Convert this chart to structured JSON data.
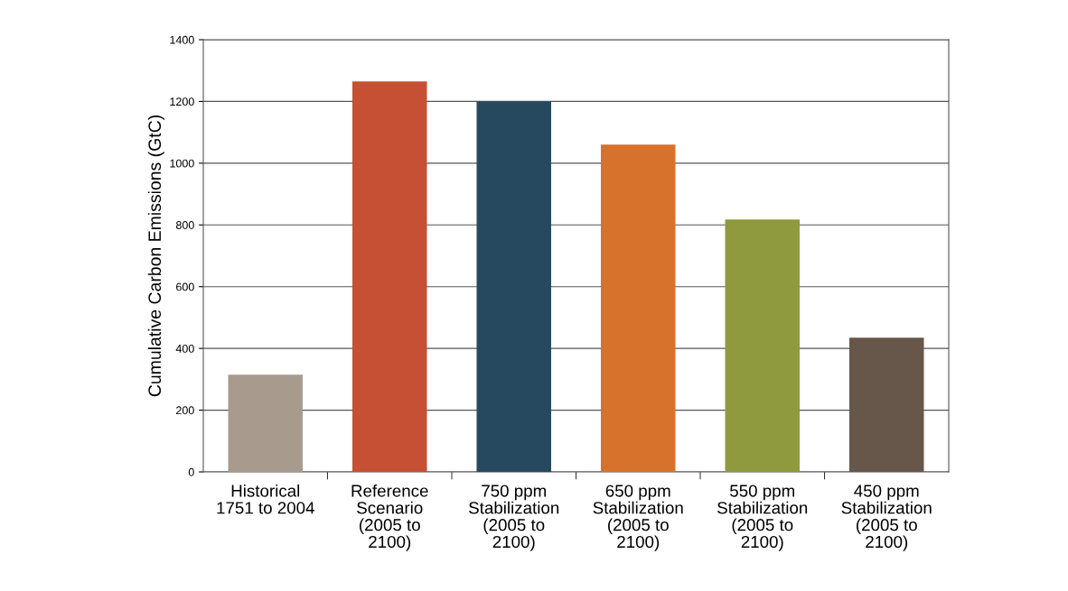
{
  "chart_data": {
    "type": "bar",
    "ylabel": "Cumulative Carbon Emissions (GtC)",
    "categories": [
      "Historical\n1751 to 2004",
      "Reference\nScenario\n(2005 to\n2100)",
      "750 ppm\nStabilization\n(2005 to\n2100)",
      "650 ppm\nStabilization\n(2005 to\n2100)",
      "550 ppm\nStabilization\n(2005 to\n2100)",
      "450 ppm\nStabilization\n(2005 to\n2100)"
    ],
    "values": [
      315,
      1265,
      1200,
      1060,
      818,
      435
    ],
    "colors": [
      "#a89b8e",
      "#c65033",
      "#274960",
      "#d6722c",
      "#8f9a3e",
      "#66574a"
    ],
    "ylim": [
      0,
      1400
    ],
    "yticks": [
      0,
      200,
      400,
      600,
      800,
      1000,
      1200,
      1400
    ],
    "grid": "y"
  }
}
